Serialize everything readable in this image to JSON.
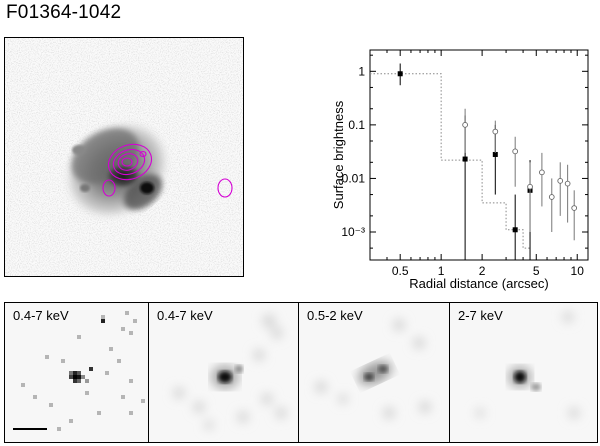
{
  "object_name": "F01364-1042",
  "chart_data": {
    "type": "scatter",
    "xlabel": "Radial distance (arcsec)",
    "ylabel": "Surface brightness",
    "xscale": "log",
    "yscale": "log",
    "xlim": [
      0.3,
      12
    ],
    "ylim": [
      0.0003,
      2.5
    ],
    "x_ticks": [
      0.5,
      1,
      2,
      5,
      10
    ],
    "x_tick_labels": [
      "0.5",
      "1",
      "2",
      "5",
      "10"
    ],
    "y_ticks": [
      1,
      0.1,
      0.01,
      0.001
    ],
    "y_tick_labels": [
      "1",
      "0.1",
      "0.01",
      "10⁻³"
    ],
    "series": [
      {
        "marker": "filled-square",
        "points": [
          {
            "x": 0.5,
            "y": 0.9,
            "ylo": 0.55,
            "yhi": 1.4
          },
          {
            "x": 1.5,
            "y": 0.023,
            "ylo": 0.0003,
            "yhi": 0.15
          },
          {
            "x": 2.5,
            "y": 0.028,
            "ylo": 0.005,
            "yhi": 0.1
          },
          {
            "x": 3.5,
            "y": 0.0011,
            "ylo": 0.0003,
            "yhi": 0.005
          },
          {
            "x": 4.5,
            "y": 0.006,
            "ylo": 0.0003,
            "yhi": 0.022
          }
        ]
      },
      {
        "marker": "open-circle",
        "points": [
          {
            "x": 1.5,
            "y": 0.1,
            "ylo": 0.03,
            "yhi": 0.2
          },
          {
            "x": 2.5,
            "y": 0.075,
            "ylo": 0.03,
            "yhi": 0.12
          },
          {
            "x": 3.5,
            "y": 0.032,
            "ylo": 0.007,
            "yhi": 0.06
          },
          {
            "x": 4.5,
            "y": 0.007,
            "ylo": 0.001,
            "yhi": 0.02
          },
          {
            "x": 5.5,
            "y": 0.013,
            "ylo": 0.003,
            "yhi": 0.03
          },
          {
            "x": 6.5,
            "y": 0.0045,
            "ylo": 0.001,
            "yhi": 0.01
          },
          {
            "x": 7.5,
            "y": 0.009,
            "ylo": 0.002,
            "yhi": 0.02
          },
          {
            "x": 8.5,
            "y": 0.008,
            "ylo": 0.0015,
            "yhi": 0.018
          },
          {
            "x": 9.5,
            "y": 0.0028,
            "ylo": 0.0007,
            "yhi": 0.006
          }
        ]
      }
    ],
    "model_step": [
      {
        "x1": 0.3,
        "x2": 1.0,
        "y": 0.9
      },
      {
        "x1": 1.0,
        "x2": 2.0,
        "y": 0.022
      },
      {
        "x1": 2.0,
        "x2": 3.0,
        "y": 0.0035
      },
      {
        "x1": 3.0,
        "x2": 4.0,
        "y": 0.0011
      },
      {
        "x1": 4.0,
        "x2": 4.6,
        "y": 0.0005
      }
    ]
  },
  "panels": [
    {
      "label": "0.4-7 keV",
      "style": "binned"
    },
    {
      "label": "0.4-7 keV",
      "style": "smoothed"
    },
    {
      "label": "0.5-2 keV",
      "style": "smoothed-soft"
    },
    {
      "label": "2-7 keV",
      "style": "smoothed-hard"
    }
  ],
  "colors": {
    "contour": "#d400d4",
    "axis": "#000000",
    "model_line": "#888888"
  }
}
